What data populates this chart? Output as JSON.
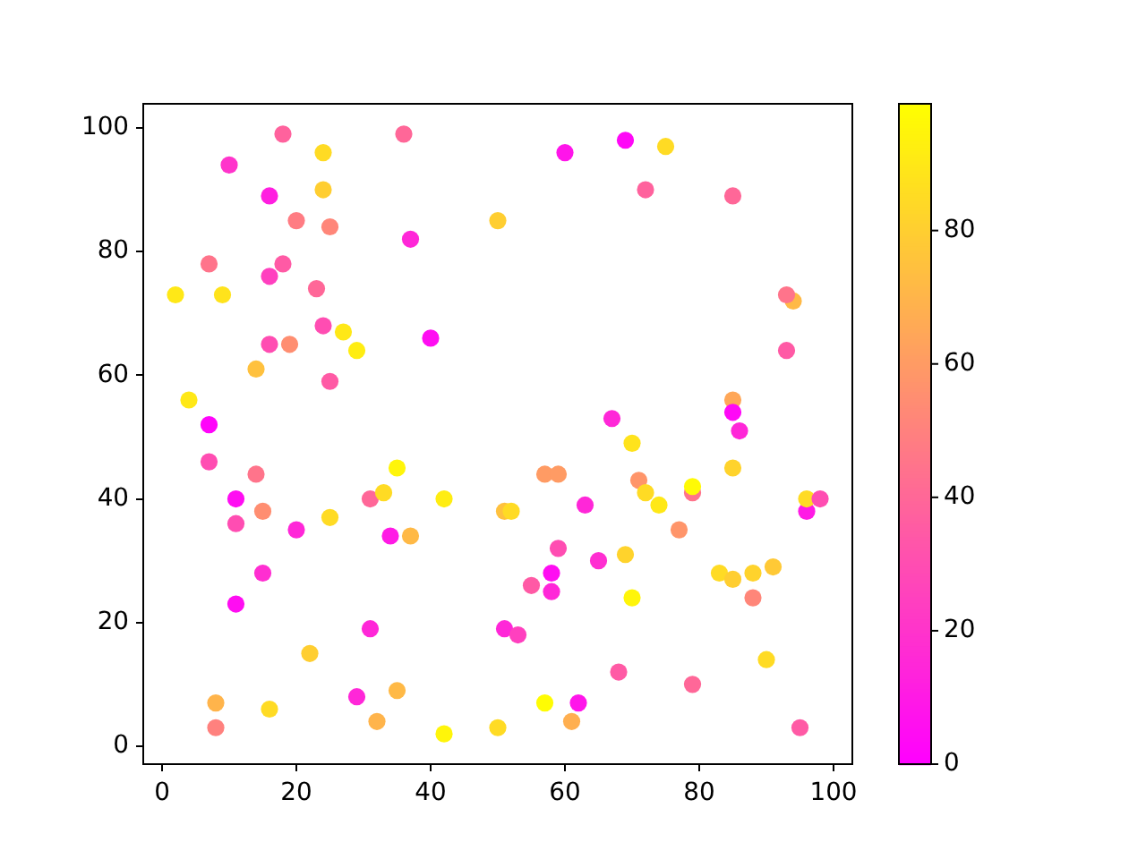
{
  "chart_data": {
    "type": "scatter",
    "x": [
      2,
      4,
      7,
      7,
      7,
      8,
      8,
      9,
      10,
      11,
      11,
      11,
      14,
      14,
      15,
      15,
      16,
      16,
      16,
      16,
      18,
      18,
      19,
      20,
      20,
      22,
      23,
      24,
      24,
      24,
      25,
      25,
      25,
      27,
      29,
      29,
      31,
      31,
      32,
      33,
      34,
      35,
      35,
      36,
      37,
      37,
      40,
      42,
      42,
      50,
      50,
      51,
      52,
      51,
      53,
      55,
      57,
      57,
      58,
      58,
      59,
      59,
      60,
      61,
      62,
      63,
      65,
      67,
      68,
      69,
      69,
      70,
      70,
      71,
      72,
      72,
      74,
      75,
      77,
      79,
      79,
      79,
      83,
      85,
      85,
      85,
      85,
      85,
      86,
      88,
      88,
      90,
      91,
      94,
      93,
      93,
      95,
      96,
      96,
      98
    ],
    "values": [
      73,
      56,
      78,
      52,
      46,
      7,
      3,
      73,
      94,
      40,
      36,
      23,
      61,
      44,
      38,
      28,
      89,
      76,
      65,
      6,
      99,
      78,
      65,
      85,
      35,
      15,
      74,
      96,
      90,
      68,
      84,
      59,
      37,
      67,
      64,
      8,
      40,
      19,
      4,
      41,
      34,
      45,
      9,
      99,
      82,
      34,
      66,
      40,
      2,
      85,
      3,
      38,
      38,
      19,
      18,
      26,
      44,
      7,
      28,
      25,
      44,
      32,
      96,
      4,
      7,
      39,
      30,
      53,
      12,
      98,
      31,
      49,
      24,
      43,
      90,
      41,
      39,
      97,
      35,
      41,
      42,
      10,
      28,
      89,
      56,
      54,
      45,
      27,
      51,
      28,
      24,
      14,
      29,
      72,
      73,
      64,
      3,
      38,
      40,
      40
    ],
    "cvalues": [
      90,
      90,
      45,
      2,
      30,
      70,
      50,
      88,
      20,
      5,
      30,
      5,
      75,
      45,
      55,
      18,
      12,
      25,
      30,
      85,
      38,
      35,
      55,
      48,
      15,
      80,
      40,
      85,
      80,
      30,
      52,
      35,
      85,
      90,
      92,
      15,
      40,
      15,
      70,
      85,
      10,
      95,
      72,
      40,
      15,
      72,
      5,
      92,
      95,
      80,
      85,
      75,
      85,
      15,
      25,
      35,
      60,
      98,
      5,
      15,
      60,
      30,
      8,
      68,
      8,
      15,
      18,
      15,
      35,
      3,
      82,
      88,
      95,
      58,
      38,
      85,
      90,
      85,
      58,
      45,
      97,
      40,
      85,
      40,
      65,
      3,
      82,
      80,
      15,
      82,
      52,
      85,
      78,
      72,
      45,
      35,
      35,
      10,
      85,
      30
    ],
    "xlim": [
      -2.8,
      102.8
    ],
    "ylim": [
      -2.9,
      103.9
    ],
    "xticks": [
      0,
      20,
      40,
      60,
      80,
      100
    ],
    "yticks": [
      0,
      20,
      40,
      60,
      80,
      100
    ],
    "clim": [
      0,
      99
    ],
    "cticks": [
      0,
      20,
      40,
      60,
      80
    ],
    "marker": "circle"
  }
}
